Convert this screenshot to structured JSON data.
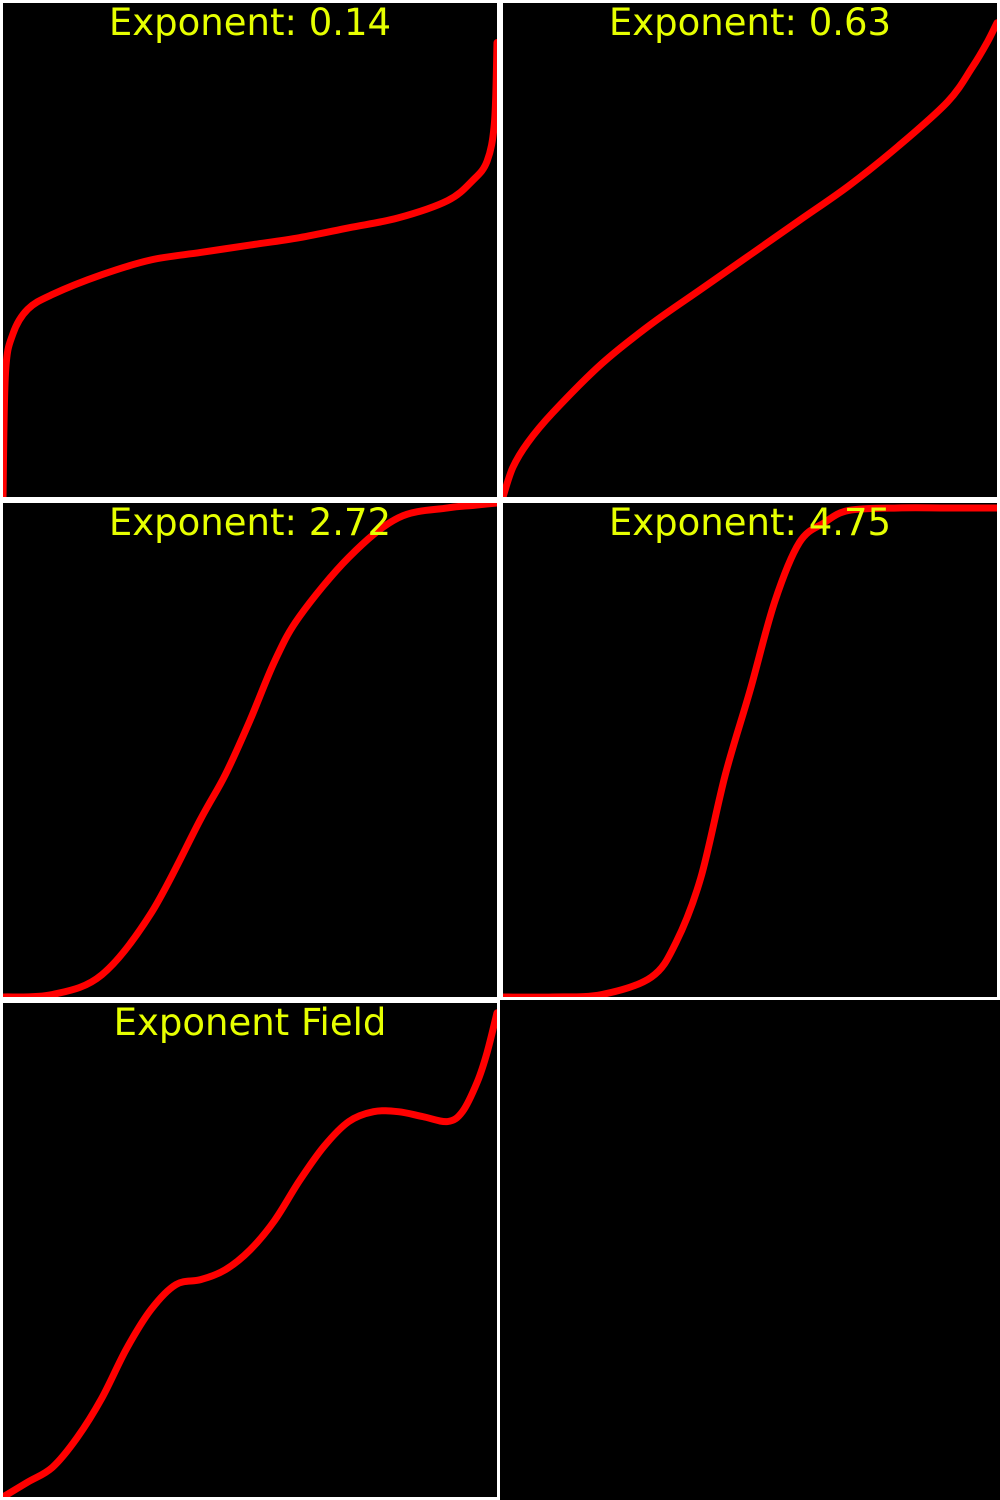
{
  "colors": {
    "background": "#000000",
    "separator": "#ffffff",
    "curve": "#ff0000",
    "title": "#e6ff00"
  },
  "chart_data": [
    {
      "type": "line",
      "title": "Exponent: 0.14",
      "xlim": [
        0,
        1
      ],
      "ylim": [
        0,
        1
      ],
      "grid": false,
      "series": [
        {
          "x": [
            0,
            0.005,
            0.02,
            0.05,
            0.1,
            0.2,
            0.3,
            0.4,
            0.5,
            0.6,
            0.7,
            0.8,
            0.9,
            0.95,
            0.98,
            0.995,
            1
          ],
          "y": [
            0,
            0.25,
            0.33,
            0.38,
            0.41,
            0.45,
            0.48,
            0.495,
            0.51,
            0.525,
            0.545,
            0.565,
            0.6,
            0.64,
            0.68,
            0.76,
            0.92
          ]
        }
      ]
    },
    {
      "type": "line",
      "title": "Exponent: 0.63",
      "xlim": [
        0,
        1
      ],
      "ylim": [
        0,
        1
      ],
      "grid": false,
      "series": [
        {
          "x": [
            0,
            0.02,
            0.05,
            0.1,
            0.2,
            0.3,
            0.4,
            0.5,
            0.6,
            0.7,
            0.8,
            0.9,
            0.95,
            0.98,
            1
          ],
          "y": [
            0,
            0.06,
            0.11,
            0.17,
            0.27,
            0.35,
            0.42,
            0.49,
            0.56,
            0.63,
            0.71,
            0.8,
            0.87,
            0.92,
            0.96
          ]
        }
      ]
    },
    {
      "type": "line",
      "title": "Exponent: 2.72",
      "xlim": [
        0,
        1
      ],
      "ylim": [
        0,
        1
      ],
      "grid": false,
      "series": [
        {
          "x": [
            0,
            0.1,
            0.2,
            0.3,
            0.4,
            0.45,
            0.5,
            0.55,
            0.6,
            0.7,
            0.8,
            0.9,
            0.95,
            1
          ],
          "y": [
            0,
            0.005,
            0.045,
            0.17,
            0.36,
            0.45,
            0.56,
            0.68,
            0.77,
            0.89,
            0.97,
            0.99,
            0.995,
            1
          ]
        }
      ]
    },
    {
      "type": "line",
      "title": "Exponent: 4.75",
      "xlim": [
        0,
        1
      ],
      "ylim": [
        0,
        1
      ],
      "grid": false,
      "series": [
        {
          "x": [
            0,
            0.1,
            0.2,
            0.3,
            0.35,
            0.4,
            0.45,
            0.5,
            0.55,
            0.6,
            0.65,
            0.7,
            0.8,
            0.9,
            1
          ],
          "y": [
            0,
            0,
            0.005,
            0.04,
            0.11,
            0.24,
            0.45,
            0.62,
            0.8,
            0.92,
            0.96,
            0.985,
            0.99,
            0.99,
            0.99
          ]
        }
      ]
    },
    {
      "type": "line",
      "title": "Exponent Field",
      "xlim": [
        0,
        1
      ],
      "ylim": [
        0,
        1
      ],
      "grid": false,
      "series": [
        {
          "x": [
            0,
            0.05,
            0.1,
            0.15,
            0.2,
            0.25,
            0.3,
            0.35,
            0.4,
            0.45,
            0.5,
            0.55,
            0.6,
            0.65,
            0.7,
            0.75,
            0.8,
            0.85,
            0.9,
            0.93,
            0.96,
            0.98,
            1
          ],
          "y": [
            0,
            0.03,
            0.06,
            0.12,
            0.2,
            0.3,
            0.38,
            0.43,
            0.44,
            0.46,
            0.5,
            0.56,
            0.64,
            0.71,
            0.76,
            0.78,
            0.78,
            0.77,
            0.76,
            0.78,
            0.84,
            0.9,
            0.98
          ]
        }
      ]
    },
    {
      "type": "line",
      "title": "",
      "xlim": [
        0,
        1
      ],
      "ylim": [
        0,
        1
      ],
      "grid": false,
      "series": []
    }
  ]
}
